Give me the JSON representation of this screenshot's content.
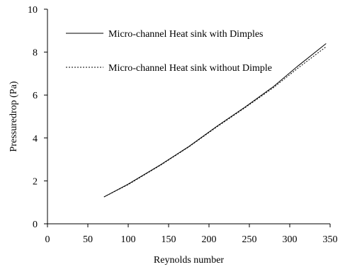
{
  "chart_data": {
    "type": "line",
    "title": "",
    "xlabel": "Reynolds number",
    "ylabel": "Pressuredrop (Pa)",
    "xlim": [
      0,
      350
    ],
    "ylim": [
      0,
      10
    ],
    "xticks": [
      0,
      50,
      100,
      150,
      200,
      250,
      300,
      350
    ],
    "yticks": [
      0,
      2,
      4,
      6,
      8,
      10
    ],
    "grid": false,
    "legend_position": "top-right",
    "series": [
      {
        "name": "Micro-channel Heat sink with Dimples",
        "style": "solid",
        "x": [
          70,
          100,
          140,
          175,
          210,
          245,
          280,
          310,
          345
        ],
        "y": [
          1.25,
          1.85,
          2.75,
          3.6,
          4.55,
          5.45,
          6.4,
          7.35,
          8.4
        ]
      },
      {
        "name": "Micro-channel Heat sink without Dimple",
        "style": "dashed",
        "x": [
          70,
          100,
          140,
          175,
          210,
          245,
          280,
          310,
          345
        ],
        "y": [
          1.25,
          1.83,
          2.73,
          3.58,
          4.52,
          5.42,
          6.35,
          7.25,
          8.25
        ]
      }
    ]
  }
}
